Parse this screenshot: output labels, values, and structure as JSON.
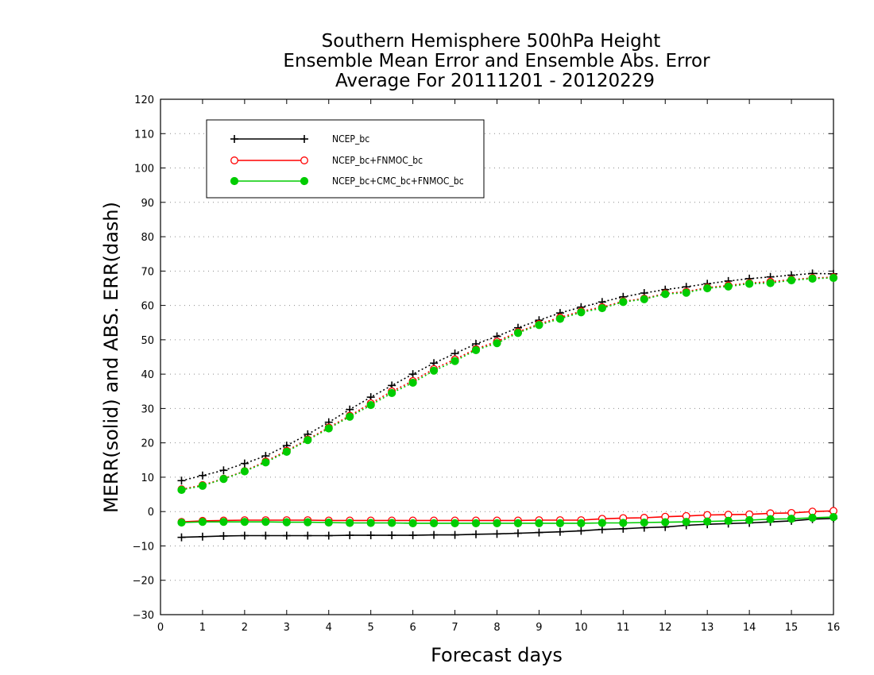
{
  "chart_data": {
    "type": "line",
    "title": [
      "Southern Hemisphere 500hPa Height",
      "Ensemble Mean Error and Ensemble Abs. Error",
      "Average For 20111201 - 20120229"
    ],
    "xlabel": "Forecast days",
    "ylabel": "MERR(solid) and ABS. ERR(dash)",
    "xlim": [
      0,
      16
    ],
    "ylim": [
      -30,
      120
    ],
    "xticks": [
      0,
      1,
      2,
      3,
      4,
      5,
      6,
      7,
      8,
      9,
      10,
      11,
      12,
      13,
      14,
      15,
      16
    ],
    "yticks": [
      -30,
      -20,
      -10,
      0,
      10,
      20,
      30,
      40,
      50,
      60,
      70,
      80,
      90,
      100,
      110,
      120
    ],
    "grid": "horizontal dotted",
    "legend_position": "top-left",
    "x": [
      0.5,
      1.0,
      1.5,
      2.0,
      2.5,
      3.0,
      3.5,
      4.0,
      4.5,
      5.0,
      5.5,
      6.0,
      6.5,
      7.0,
      7.5,
      8.0,
      8.5,
      9.0,
      9.5,
      10.0,
      10.5,
      11.0,
      11.5,
      12.0,
      12.5,
      13.0,
      13.5,
      14.0,
      14.5,
      15.0,
      15.5,
      16.0
    ],
    "series": [
      {
        "name": "NCEP_bc",
        "color": "#000000",
        "marker": "plus",
        "merr": [
          -7.5,
          -7.3,
          -7.1,
          -7.0,
          -7.0,
          -7.0,
          -7.0,
          -7.0,
          -6.9,
          -6.9,
          -6.9,
          -6.9,
          -6.8,
          -6.8,
          -6.6,
          -6.5,
          -6.3,
          -6.1,
          -5.9,
          -5.6,
          -5.2,
          -5.0,
          -4.7,
          -4.5,
          -4.0,
          -3.7,
          -3.5,
          -3.3,
          -3.0,
          -2.7,
          -2.2,
          -2.0
        ],
        "abs_err": [
          9.0,
          10.5,
          12.0,
          14.0,
          16.2,
          19.2,
          22.5,
          26.0,
          29.7,
          33.3,
          36.7,
          40.0,
          43.2,
          46.0,
          48.8,
          51.0,
          53.5,
          55.7,
          57.8,
          59.5,
          61.0,
          62.5,
          63.6,
          64.6,
          65.4,
          66.3,
          67.1,
          67.8,
          68.3,
          68.8,
          69.3,
          69.2
        ]
      },
      {
        "name": "NCEP_bc+FNMOC_bc",
        "color": "#ff0000",
        "marker": "open-circle",
        "merr": [
          -3.0,
          -2.7,
          -2.6,
          -2.5,
          -2.5,
          -2.5,
          -2.5,
          -2.6,
          -2.6,
          -2.6,
          -2.6,
          -2.6,
          -2.6,
          -2.6,
          -2.6,
          -2.6,
          -2.6,
          -2.5,
          -2.5,
          -2.5,
          -2.1,
          -1.9,
          -1.8,
          -1.5,
          -1.3,
          -1.0,
          -0.9,
          -0.8,
          -0.5,
          -0.4,
          0.0,
          0.2
        ],
        "abs_err": [
          6.5,
          7.7,
          9.6,
          11.8,
          14.6,
          17.7,
          21.0,
          24.5,
          27.9,
          31.5,
          35.0,
          38.0,
          41.5,
          44.3,
          47.3,
          49.5,
          52.3,
          54.6,
          56.5,
          58.3,
          59.5,
          61.2,
          62.0,
          63.5,
          64.0,
          65.2,
          65.8,
          66.5,
          66.9,
          67.5,
          68.0,
          68.2
        ]
      },
      {
        "name": "NCEP_bc+CMC_bc+FNMOC_bc",
        "color": "#00cc00",
        "marker": "filled-circle",
        "merr": [
          -3.2,
          -3.0,
          -3.0,
          -3.0,
          -3.0,
          -3.1,
          -3.1,
          -3.2,
          -3.3,
          -3.3,
          -3.3,
          -3.4,
          -3.4,
          -3.4,
          -3.4,
          -3.4,
          -3.4,
          -3.4,
          -3.4,
          -3.4,
          -3.3,
          -3.3,
          -3.2,
          -3.1,
          -3.0,
          -2.9,
          -2.7,
          -2.5,
          -2.2,
          -2.1,
          -1.8,
          -1.6
        ],
        "abs_err": [
          6.3,
          7.5,
          9.5,
          11.7,
          14.3,
          17.4,
          20.8,
          24.2,
          27.6,
          31.0,
          34.5,
          37.5,
          41.0,
          43.8,
          47.0,
          49.0,
          52.0,
          54.3,
          56.1,
          58.0,
          59.2,
          61.0,
          61.8,
          63.3,
          63.7,
          65.0,
          65.5,
          66.3,
          66.5,
          67.3,
          67.8,
          68.0
        ]
      }
    ]
  }
}
